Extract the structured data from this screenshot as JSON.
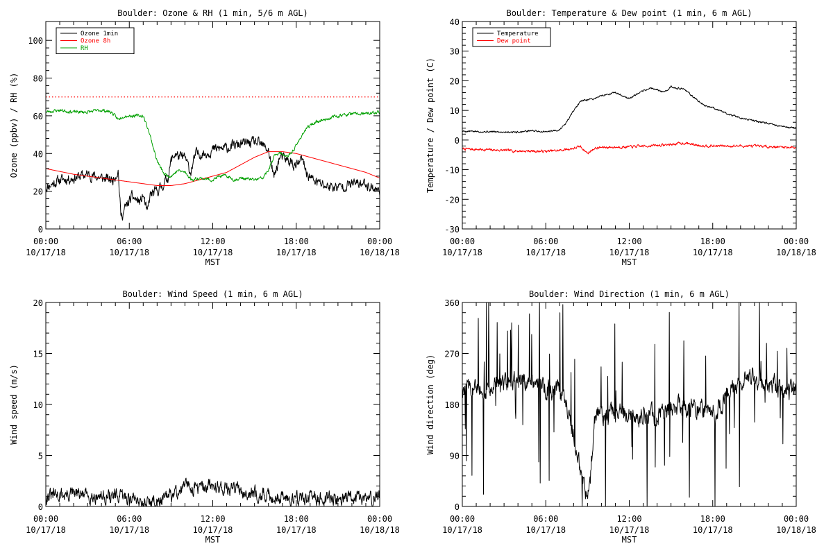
{
  "chart_data": [
    {
      "id": "ozone-rh",
      "type": "line",
      "title": "Boulder: Ozone & RH (1 min, 5/6 m AGL)",
      "xlabel": "MST",
      "ylabel": "Ozone (ppbv) / RH (%)",
      "xlim": [
        0,
        24
      ],
      "ylim": [
        0,
        110
      ],
      "yticks": [
        0,
        20,
        40,
        60,
        80,
        100
      ],
      "xticks": [
        {
          "time": "00:00",
          "date": "10/17/18"
        },
        {
          "time": "06:00",
          "date": "10/17/18"
        },
        {
          "time": "12:00",
          "date": "10/17/18"
        },
        {
          "time": "18:00",
          "date": "10/17/18"
        },
        {
          "time": "00:00",
          "date": "10/18/18"
        }
      ],
      "legend_position": "top-left",
      "reference_line": {
        "y": 70,
        "color": "#ff0000",
        "style": "dotted"
      },
      "series": [
        {
          "name": "Ozone 1min",
          "color": "#000000",
          "noise": 2.2,
          "seed": 11,
          "points": [
            [
              0,
              22
            ],
            [
              1,
              26
            ],
            [
              2,
              27
            ],
            [
              3,
              29
            ],
            [
              4,
              27
            ],
            [
              4.8,
              26
            ],
            [
              5.2,
              31
            ],
            [
              5.4,
              6
            ],
            [
              5.7,
              11
            ],
            [
              6.2,
              17
            ],
            [
              6.8,
              14
            ],
            [
              7,
              18
            ],
            [
              7.3,
              8
            ],
            [
              7.5,
              18
            ],
            [
              8,
              20
            ],
            [
              8.5,
              24
            ],
            [
              8.8,
              28
            ],
            [
              9,
              36
            ],
            [
              9.3,
              40
            ],
            [
              9.6,
              38
            ],
            [
              10,
              38
            ],
            [
              10.4,
              30
            ],
            [
              10.8,
              40
            ],
            [
              11.5,
              40
            ],
            [
              12,
              42
            ],
            [
              13,
              43
            ],
            [
              14,
              45
            ],
            [
              15,
              46
            ],
            [
              15.6,
              44
            ],
            [
              16,
              42
            ],
            [
              16.4,
              27
            ],
            [
              16.8,
              38
            ],
            [
              17.5,
              36
            ],
            [
              18,
              33
            ],
            [
              18.4,
              37
            ],
            [
              18.8,
              29
            ],
            [
              19.2,
              26
            ],
            [
              20,
              23
            ],
            [
              21,
              22
            ],
            [
              22,
              24
            ],
            [
              23,
              24
            ],
            [
              24,
              20
            ]
          ]
        },
        {
          "name": "Ozone 8h",
          "color": "#ff0000",
          "noise": 0,
          "seed": 0,
          "points": [
            [
              0,
              32
            ],
            [
              2,
              29
            ],
            [
              4,
              27
            ],
            [
              6,
              25
            ],
            [
              7,
              24
            ],
            [
              8,
              23
            ],
            [
              9,
              23
            ],
            [
              10,
              24
            ],
            [
              11,
              26
            ],
            [
              12,
              28
            ],
            [
              13,
              30
            ],
            [
              14,
              34
            ],
            [
              15,
              38
            ],
            [
              16,
              41
            ],
            [
              17,
              41
            ],
            [
              18,
              40
            ],
            [
              19,
              38
            ],
            [
              20,
              36
            ],
            [
              21,
              34
            ],
            [
              22,
              32
            ],
            [
              23,
              30
            ],
            [
              24,
              27
            ]
          ]
        },
        {
          "name": "RH",
          "color": "#00a000",
          "noise": 0.7,
          "seed": 23,
          "points": [
            [
              0,
              62
            ],
            [
              1,
              63
            ],
            [
              2,
              62
            ],
            [
              3,
              62
            ],
            [
              4,
              63
            ],
            [
              4.7,
              62
            ],
            [
              5.2,
              58
            ],
            [
              5.6,
              60
            ],
            [
              6.5,
              60
            ],
            [
              7,
              60
            ],
            [
              7.4,
              52
            ],
            [
              7.7,
              44
            ],
            [
              8,
              36
            ],
            [
              8.5,
              29
            ],
            [
              9,
              28
            ],
            [
              9.5,
              31
            ],
            [
              10,
              30
            ],
            [
              10.5,
              26
            ],
            [
              11,
              27
            ],
            [
              12,
              26
            ],
            [
              12.5,
              28
            ],
            [
              13,
              28
            ],
            [
              13.6,
              26
            ],
            [
              14,
              27
            ],
            [
              15,
              26
            ],
            [
              15.6,
              27
            ],
            [
              16,
              31
            ],
            [
              16.5,
              40
            ],
            [
              17,
              40
            ],
            [
              17.4,
              38
            ],
            [
              17.6,
              40
            ],
            [
              18,
              44
            ],
            [
              18.5,
              51
            ],
            [
              19,
              55
            ],
            [
              19.5,
              57
            ],
            [
              20,
              58
            ],
            [
              21,
              60
            ],
            [
              22,
              61
            ],
            [
              23,
              61
            ],
            [
              24,
              62
            ]
          ]
        }
      ]
    },
    {
      "id": "temp-dew",
      "type": "line",
      "title": "Boulder: Temperature & Dew point (1 min, 6 m AGL)",
      "xlabel": "MST",
      "ylabel": "Temperature / Dew point (C)",
      "xlim": [
        0,
        24
      ],
      "ylim": [
        -30,
        40
      ],
      "yticks": [
        -30,
        -20,
        -10,
        0,
        10,
        20,
        30,
        40
      ],
      "xticks": [
        {
          "time": "00:00",
          "date": "10/17/18"
        },
        {
          "time": "06:00",
          "date": "10/17/18"
        },
        {
          "time": "12:00",
          "date": "10/17/18"
        },
        {
          "time": "18:00",
          "date": "10/17/18"
        },
        {
          "time": "00:00",
          "date": "10/18/18"
        }
      ],
      "legend_position": "top-left",
      "series": [
        {
          "name": "Temperature",
          "color": "#000000",
          "noise": 0.25,
          "seed": 5,
          "points": [
            [
              0,
              3
            ],
            [
              2,
              2.8
            ],
            [
              4,
              2.7
            ],
            [
              5,
              3.2
            ],
            [
              6,
              2.7
            ],
            [
              7,
              3.5
            ],
            [
              7.5,
              6
            ],
            [
              8,
              10
            ],
            [
              8.5,
              13
            ],
            [
              9.5,
              14
            ],
            [
              10,
              15
            ],
            [
              11,
              16
            ],
            [
              12,
              14
            ],
            [
              13,
              16.5
            ],
            [
              13.5,
              17.5
            ],
            [
              14,
              17
            ],
            [
              14.5,
              16
            ],
            [
              15,
              18
            ],
            [
              15.5,
              17.5
            ],
            [
              16,
              17
            ],
            [
              16.5,
              15
            ],
            [
              17,
              13
            ],
            [
              17.5,
              11.5
            ],
            [
              18,
              11
            ],
            [
              19,
              9
            ],
            [
              20,
              7.5
            ],
            [
              21,
              6.5
            ],
            [
              22,
              5.5
            ],
            [
              23,
              4.5
            ],
            [
              24,
              4
            ]
          ]
        },
        {
          "name": "Dew point",
          "color": "#ff0000",
          "noise": 0.35,
          "seed": 7,
          "points": [
            [
              0,
              -3
            ],
            [
              2,
              -3.3
            ],
            [
              4,
              -3.7
            ],
            [
              6,
              -3.8
            ],
            [
              7,
              -3.5
            ],
            [
              8,
              -2.8
            ],
            [
              8.5,
              -2.2
            ],
            [
              9,
              -4.5
            ],
            [
              9.5,
              -2.8
            ],
            [
              10,
              -2.5
            ],
            [
              12,
              -2.3
            ],
            [
              14,
              -1.8
            ],
            [
              15,
              -1.5
            ],
            [
              15.5,
              -1.2
            ],
            [
              16,
              -1
            ],
            [
              17,
              -1.8
            ],
            [
              18,
              -2
            ],
            [
              20,
              -2
            ],
            [
              22,
              -2.2
            ],
            [
              24,
              -2.5
            ]
          ]
        }
      ]
    },
    {
      "id": "wind-speed",
      "type": "line",
      "title": "Boulder: Wind Speed (1 min, 6 m AGL)",
      "xlabel": "MST",
      "ylabel": "Wind speed (m/s)",
      "xlim": [
        0,
        24
      ],
      "ylim": [
        0,
        20
      ],
      "yticks": [
        0,
        5,
        10,
        15,
        20
      ],
      "xticks": [
        {
          "time": "00:00",
          "date": "10/17/18"
        },
        {
          "time": "06:00",
          "date": "10/17/18"
        },
        {
          "time": "12:00",
          "date": "10/17/18"
        },
        {
          "time": "18:00",
          "date": "10/17/18"
        },
        {
          "time": "00:00",
          "date": "10/18/18"
        }
      ],
      "series": [
        {
          "name": "",
          "color": "#000000",
          "noise": 0.55,
          "seed": 31,
          "floor": 0,
          "points": [
            [
              0,
              1
            ],
            [
              2,
              1.2
            ],
            [
              4,
              1
            ],
            [
              6,
              0.9
            ],
            [
              7,
              0.5
            ],
            [
              8,
              0.4
            ],
            [
              9,
              1
            ],
            [
              10,
              2
            ],
            [
              11,
              1.8
            ],
            [
              12,
              2
            ],
            [
              13,
              1.8
            ],
            [
              14,
              1.6
            ],
            [
              15,
              1.3
            ],
            [
              16,
              1
            ],
            [
              18,
              0.8
            ],
            [
              20,
              0.8
            ],
            [
              22,
              0.8
            ],
            [
              24,
              0.8
            ]
          ]
        }
      ]
    },
    {
      "id": "wind-direction",
      "type": "line",
      "title": "Boulder: Wind Direction (1 min, 6 m AGL)",
      "xlabel": "MST",
      "ylabel": "Wind direction (deg)",
      "xlim": [
        0,
        24
      ],
      "ylim": [
        0,
        360
      ],
      "yticks": [
        0,
        90,
        180,
        270,
        360
      ],
      "xticks": [
        {
          "time": "00:00",
          "date": "10/17/18"
        },
        {
          "time": "06:00",
          "date": "10/17/18"
        },
        {
          "time": "12:00",
          "date": "10/17/18"
        },
        {
          "time": "18:00",
          "date": "10/17/18"
        },
        {
          "time": "00:00",
          "date": "10/18/18"
        }
      ],
      "series": [
        {
          "name": "",
          "color": "#000000",
          "noise": 14,
          "seed": 47,
          "floor": 0,
          "ceil": 360,
          "spikes": 0.07,
          "points": [
            [
              0,
              210
            ],
            [
              1,
              205
            ],
            [
              2,
              210
            ],
            [
              3,
              215
            ],
            [
              4,
              220
            ],
            [
              5,
              225
            ],
            [
              6,
              210
            ],
            [
              7,
              200
            ],
            [
              7.5,
              190
            ],
            [
              7.8,
              140
            ],
            [
              8.2,
              110
            ],
            [
              8.5,
              60
            ],
            [
              8.8,
              25
            ],
            [
              9.2,
              45
            ],
            [
              9.5,
              160
            ],
            [
              10,
              165
            ],
            [
              12,
              165
            ],
            [
              13,
              160
            ],
            [
              14,
              160
            ],
            [
              15,
              170
            ],
            [
              16,
              175
            ],
            [
              17,
              175
            ],
            [
              17.5,
              165
            ],
            [
              18,
              160
            ],
            [
              19,
              200
            ],
            [
              20,
              220
            ],
            [
              21,
              230
            ],
            [
              22,
              215
            ],
            [
              23,
              210
            ],
            [
              24,
              200
            ]
          ]
        }
      ]
    }
  ]
}
